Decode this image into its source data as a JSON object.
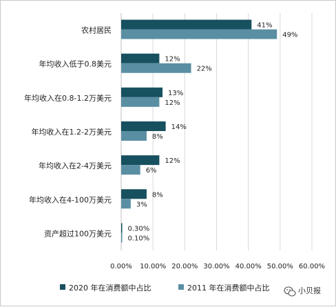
{
  "chart_data": {
    "type": "bar",
    "orientation": "horizontal",
    "categories": [
      "农村居民",
      "年均收入低于0.8美元",
      "年均收入在0.8-1.2万美元",
      "年均收入在1.2-2万美元",
      "年均收入在2-4万美元",
      "年均收入在4-100万美元",
      "资产超过100万美元"
    ],
    "series": [
      {
        "name": "2020 年在消费额中占比",
        "values": [
          41,
          12,
          13,
          14,
          12,
          8,
          0.3
        ],
        "labels": [
          "41%",
          "12%",
          "13%",
          "14%",
          "12%",
          "8%",
          "0.30%"
        ],
        "color": "#17505f"
      },
      {
        "name": "2011 年在消费额中占比",
        "values": [
          49,
          22,
          12,
          8,
          6,
          3,
          0.1
        ],
        "labels": [
          "49%",
          "22%",
          "12%",
          "8%",
          "6%",
          "3%",
          "0.10%"
        ],
        "color": "#5a8fa3"
      }
    ],
    "x_ticks": [
      "0.00%",
      "10.00%",
      "20.00%",
      "30.00%",
      "40.00%",
      "50.00%",
      "60.00%"
    ],
    "xlim": [
      0,
      60
    ],
    "grid": true,
    "legend_position": "bottom"
  },
  "watermark": {
    "text": "小贝报",
    "icon": "wechat-icon"
  }
}
